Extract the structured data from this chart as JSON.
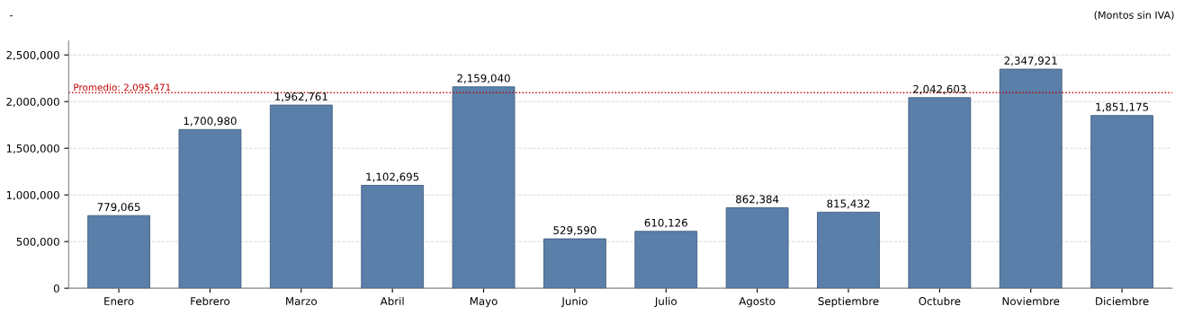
{
  "chart_data": {
    "type": "bar",
    "title": "-",
    "annotations": [
      "(Montos sin IVA)"
    ],
    "categories": [
      "Enero",
      "Febrero",
      "Marzo",
      "Abril",
      "Mayo",
      "Junio",
      "Julio",
      "Agosto",
      "Septiembre",
      "Octubre",
      "Noviembre",
      "Diciembre"
    ],
    "values": [
      779065,
      1700980,
      1962761,
      1102695,
      2159040,
      529590,
      610126,
      862384,
      815432,
      2042603,
      2347921,
      1851175
    ],
    "value_labels": [
      "779,065",
      "1,700,980",
      "1,962,761",
      "1,102,695",
      "2,159,040",
      "529,590",
      "610,126",
      "862,384",
      "815,432",
      "2,042,603",
      "2,347,921",
      "1,851,175"
    ],
    "color": "#5a7fa9",
    "ylim": [
      0,
      2650000
    ],
    "yticks": [
      0,
      {
        "value": 500000,
        "label": "500,000"
      },
      {
        "value": 1000000,
        "label": "1,000,000"
      },
      {
        "value": 1500000,
        "label": "1,500,000"
      },
      {
        "value": 2000000,
        "label": "2,000,000"
      },
      {
        "value": 2500000,
        "label": "2,500,000"
      }
    ],
    "ref_lines": [
      {
        "axis": "y",
        "value": 2095471,
        "label": "Promedio: 2,095,471",
        "color": "#c00000",
        "line_style": "dotted"
      }
    ],
    "grid": "y",
    "legend": false
  }
}
